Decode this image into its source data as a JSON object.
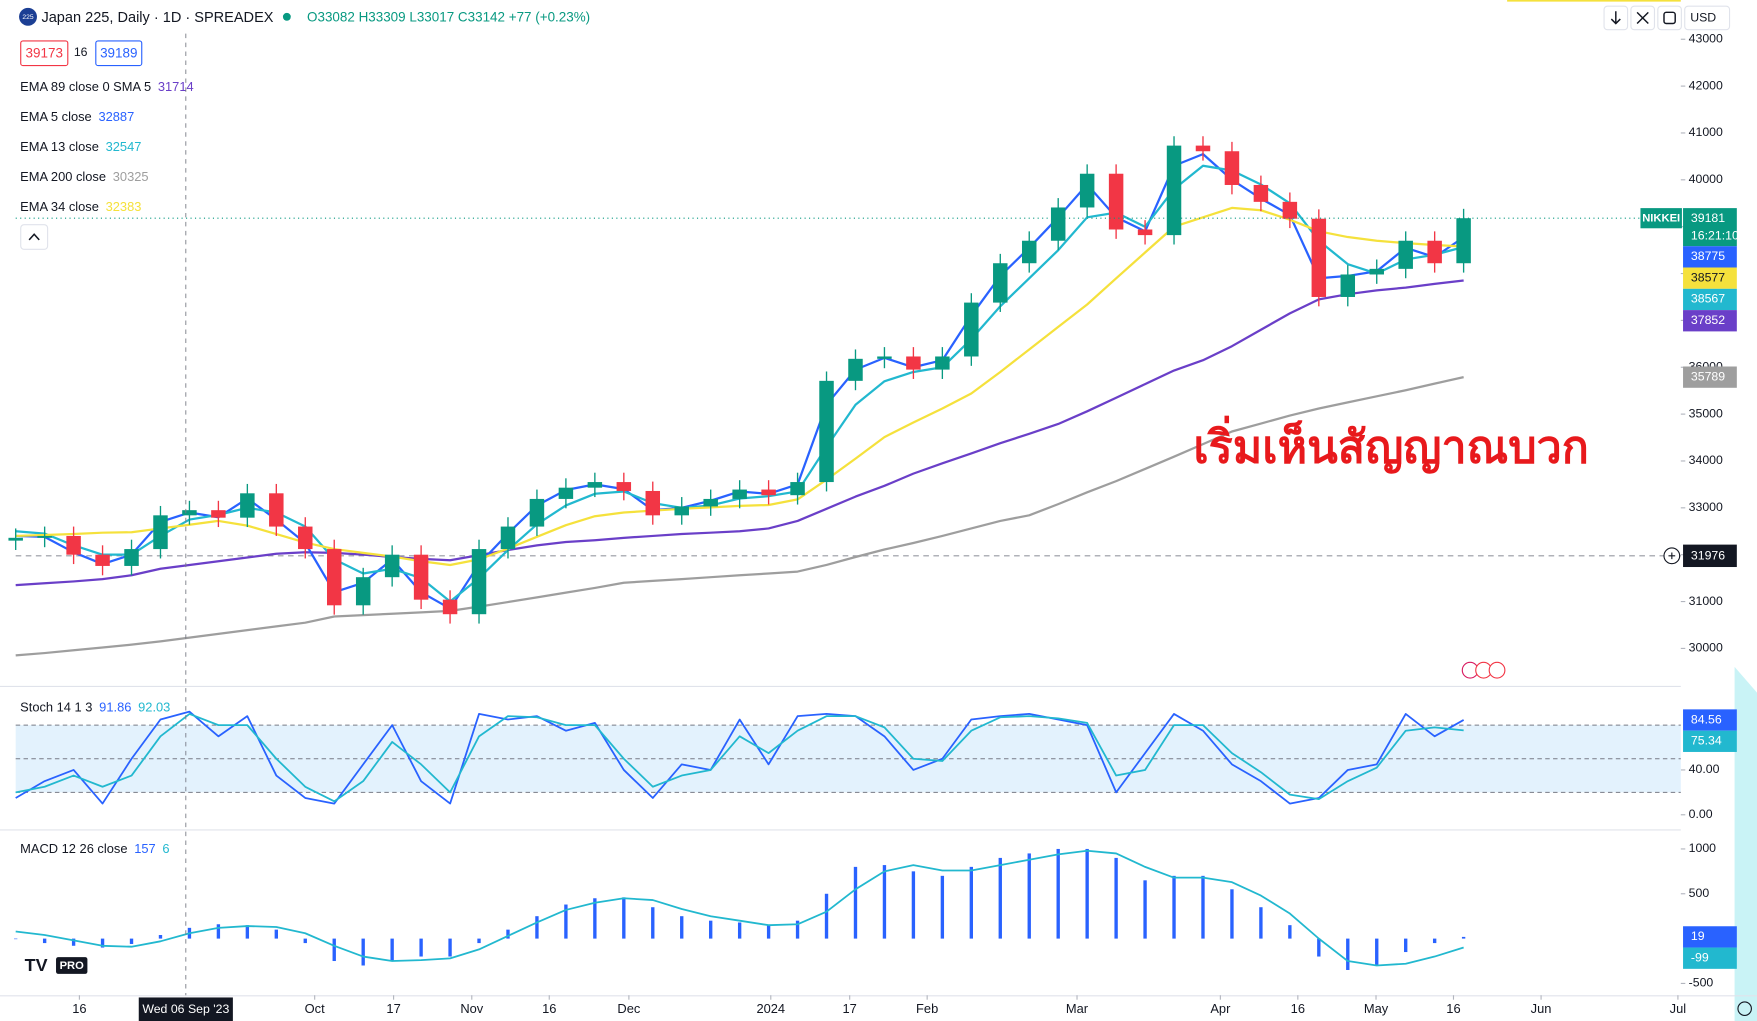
{
  "header": {
    "logo": "225",
    "title": "Japan 225, Daily · 1D · SPREADEX",
    "ohlc": "O33082 H33309 L33017 C33142 +77 (+0.23%)",
    "bid": "39173",
    "spread": "16",
    "ask": "39189",
    "currency": "USD",
    "tv_logo": "PRO"
  },
  "chart_data": [
    {
      "type": "candlestick",
      "x": [
        0,
        4,
        8,
        12,
        16,
        20,
        24,
        28,
        32,
        36,
        40,
        44,
        48,
        52,
        56,
        60,
        64,
        68,
        72,
        76,
        80,
        84,
        88,
        92,
        96,
        100,
        104,
        108,
        112,
        116,
        120,
        124,
        128,
        132,
        136,
        140,
        144,
        148,
        152,
        156,
        160,
        164,
        168,
        172,
        176,
        180,
        184,
        188,
        192,
        196,
        200
      ],
      "open": [
        32300,
        32360,
        32400,
        32000,
        31760,
        32120,
        32840,
        32950,
        32790,
        33310,
        32600,
        32120,
        30920,
        31520,
        32000,
        31040,
        30730,
        32120,
        32600,
        33190,
        33430,
        33550,
        33360,
        32840,
        33030,
        33190,
        33390,
        33270,
        33550,
        35710,
        36180,
        36230,
        35950,
        36230,
        37380,
        38220,
        38700,
        39410,
        40130,
        38940,
        38820,
        40730,
        40610,
        39890,
        39530,
        39170,
        37500,
        37980,
        38100,
        38700,
        38220
      ],
      "high": [
        32560,
        32600,
        32600,
        32200,
        32320,
        33040,
        33150,
        33150,
        33510,
        33510,
        32800,
        32320,
        31720,
        32200,
        32200,
        31240,
        32320,
        32800,
        33390,
        33630,
        33750,
        33750,
        33560,
        33230,
        33390,
        33590,
        33590,
        33750,
        35910,
        36380,
        36430,
        36430,
        36430,
        37580,
        38420,
        38900,
        39610,
        40330,
        40330,
        39140,
        40930,
        40930,
        40810,
        40090,
        39730,
        39370,
        38180,
        38300,
        38900,
        38900,
        39381
      ],
      "low": [
        32100,
        32160,
        31800,
        31560,
        31560,
        31920,
        32640,
        32590,
        32590,
        32400,
        31920,
        30720,
        30720,
        31320,
        30840,
        30530,
        30530,
        31920,
        32400,
        32990,
        33230,
        33160,
        32640,
        32640,
        32830,
        32990,
        33070,
        33070,
        33350,
        35510,
        35980,
        35750,
        35750,
        36030,
        37180,
        38020,
        38500,
        39210,
        38740,
        38620,
        38620,
        40410,
        39690,
        39330,
        38970,
        37300,
        37300,
        37780,
        37900,
        38020,
        38020
      ],
      "close": [
        32360,
        32400,
        32000,
        31760,
        32120,
        32840,
        32950,
        32790,
        33310,
        32600,
        32120,
        30920,
        31520,
        32000,
        31040,
        30730,
        32120,
        32600,
        33190,
        33430,
        33550,
        33360,
        32840,
        33030,
        33190,
        33390,
        33270,
        33550,
        35710,
        36180,
        36230,
        35950,
        36230,
        37380,
        38220,
        38700,
        39410,
        40130,
        38940,
        38820,
        40730,
        40610,
        39890,
        39530,
        39170,
        37500,
        37980,
        38100,
        38700,
        38220,
        39181
      ],
      "up_color": "#089981",
      "down_color": "#f23645",
      "series": [
        {
          "name": "EMA 89 close 0 SMA 5",
          "color": "#6a3fc8",
          "legend_value": 31714,
          "values": [
            31350,
            31390,
            31430,
            31480,
            31560,
            31700,
            31780,
            31860,
            31940,
            32020,
            32050,
            32040,
            32000,
            31950,
            31910,
            31880,
            31990,
            32100,
            32200,
            32270,
            32310,
            32360,
            32400,
            32440,
            32470,
            32500,
            32560,
            32720,
            32980,
            33240,
            33470,
            33730,
            33950,
            34160,
            34380,
            34580,
            34790,
            35060,
            35350,
            35640,
            35930,
            36150,
            36450,
            36800,
            37150,
            37450,
            37560,
            37640,
            37700,
            37780,
            37852
          ]
        },
        {
          "name": "EMA 5 close",
          "color": "#2962ff",
          "legend_value": 32887,
          "values": [
            32400,
            32380,
            32050,
            31800,
            32000,
            32700,
            32900,
            32800,
            33200,
            32750,
            32250,
            31200,
            31400,
            31900,
            31200,
            30850,
            31800,
            32450,
            33050,
            33380,
            33500,
            33400,
            32950,
            33000,
            33150,
            33350,
            33300,
            33500,
            35200,
            35950,
            36200,
            36000,
            36150,
            37100,
            37950,
            38550,
            39200,
            39900,
            39200,
            38900,
            40300,
            40550,
            40000,
            39600,
            39250,
            37900,
            37950,
            38050,
            38550,
            38350,
            38775
          ]
        },
        {
          "name": "EMA 13 close",
          "color": "#22b8cf",
          "legend_value": 32547,
          "values": [
            32500,
            32450,
            32200,
            32000,
            32000,
            32400,
            32750,
            32850,
            33000,
            32900,
            32600,
            31900,
            31600,
            31700,
            31500,
            31000,
            31500,
            32100,
            32650,
            33050,
            33300,
            33350,
            33100,
            33000,
            33050,
            33200,
            33250,
            33350,
            34300,
            35200,
            35700,
            35900,
            36000,
            36600,
            37300,
            37900,
            38500,
            39200,
            39300,
            39000,
            39800,
            40300,
            40200,
            39900,
            39500,
            38700,
            38200,
            38000,
            38300,
            38400,
            38567
          ]
        },
        {
          "name": "EMA 200 close",
          "color": "#9e9e9e",
          "legend_value": 30325,
          "values": [
            29850,
            29900,
            29960,
            30020,
            30080,
            30150,
            30230,
            30310,
            30390,
            30470,
            30550,
            30680,
            30710,
            30740,
            30770,
            30800,
            30890,
            30990,
            31090,
            31190,
            31290,
            31400,
            31440,
            31480,
            31520,
            31560,
            31600,
            31640,
            31780,
            31950,
            32110,
            32250,
            32400,
            32560,
            32720,
            32840,
            33080,
            33330,
            33570,
            33830,
            34090,
            34360,
            34630,
            34800,
            34970,
            35120,
            35250,
            35380,
            35510,
            35650,
            35789
          ]
        },
        {
          "name": "EMA 34 close",
          "color": "#f5e13c",
          "legend_value": 32383,
          "values": [
            32400,
            32420,
            32440,
            32470,
            32480,
            32560,
            32640,
            32720,
            32620,
            32440,
            32260,
            32120,
            32040,
            31960,
            31860,
            31780,
            31900,
            32130,
            32380,
            32630,
            32820,
            32900,
            32940,
            32980,
            33010,
            33040,
            33060,
            33180,
            33600,
            34050,
            34510,
            34820,
            35120,
            35440,
            35900,
            36380,
            36860,
            37340,
            37900,
            38450,
            39000,
            39200,
            39400,
            39350,
            39150,
            38900,
            38780,
            38700,
            38650,
            38610,
            38577
          ]
        }
      ],
      "xlim": [
        0,
        230
      ],
      "xticks": [
        {
          "value": 8.8,
          "label": "16"
        },
        {
          "value": 41.3,
          "label": "Oct"
        },
        {
          "value": 52.2,
          "label": "17"
        },
        {
          "value": 63,
          "label": "Nov"
        },
        {
          "value": 73.7,
          "label": "16"
        },
        {
          "value": 84.7,
          "label": "Dec"
        },
        {
          "value": 104.3,
          "label": "2024"
        },
        {
          "value": 115.2,
          "label": "17"
        },
        {
          "value": 125.9,
          "label": "Feb"
        },
        {
          "value": 146.6,
          "label": "Mar"
        },
        {
          "value": 166.4,
          "label": "Apr"
        },
        {
          "value": 177.1,
          "label": "16"
        },
        {
          "value": 187.9,
          "label": "May"
        },
        {
          "value": 198.6,
          "label": "16"
        },
        {
          "value": 210.7,
          "label": "Jun"
        },
        {
          "value": 229.6,
          "label": "Jul"
        }
      ],
      "ylim": [
        29200,
        43120
      ],
      "yticks": [
        30000,
        31000,
        32000,
        33000,
        34000,
        35000,
        36000,
        37000,
        38000,
        39000,
        40000,
        41000,
        42000,
        43000
      ],
      "hline": 31976,
      "symbol_label": "NIKKEI",
      "countdown": "16:21:10",
      "crosshair": {
        "value": 23.5,
        "label": "Wed 06 Sep '23"
      },
      "annotation": "เริ่มเห็นสัญญาณบวก"
    },
    {
      "type": "line",
      "title": "Stoch 14 1 3",
      "x": [
        0,
        4,
        8,
        12,
        16,
        20,
        24,
        28,
        32,
        36,
        40,
        44,
        48,
        52,
        56,
        60,
        64,
        68,
        72,
        76,
        80,
        84,
        88,
        92,
        96,
        100,
        104,
        108,
        112,
        116,
        120,
        124,
        128,
        132,
        136,
        140,
        144,
        148,
        152,
        156,
        160,
        164,
        168,
        172,
        176,
        180,
        184,
        188,
        192,
        196,
        200
      ],
      "series": [
        {
          "color": "#2962ff",
          "style": "line",
          "legend_value": 91.86,
          "values": [
            15,
            30,
            40,
            10,
            50,
            85,
            92,
            70,
            88,
            35,
            15,
            10,
            45,
            80,
            30,
            10,
            90,
            85,
            88,
            75,
            82,
            40,
            15,
            45,
            40,
            85,
            45,
            88,
            90,
            88,
            70,
            40,
            50,
            85,
            88,
            90,
            85,
            80,
            20,
            55,
            90,
            75,
            45,
            30,
            10,
            15,
            40,
            45,
            90,
            70,
            84.56
          ]
        },
        {
          "color": "#22b8cf",
          "style": "line",
          "legend_value": 92.03,
          "values": [
            20,
            25,
            35,
            25,
            35,
            70,
            90,
            80,
            80,
            50,
            25,
            12,
            30,
            65,
            45,
            20,
            70,
            88,
            87,
            80,
            80,
            50,
            25,
            35,
            40,
            70,
            55,
            75,
            88,
            88,
            78,
            50,
            48,
            75,
            87,
            88,
            86,
            82,
            35,
            40,
            80,
            80,
            55,
            38,
            18,
            14,
            30,
            42,
            75,
            78,
            75.34
          ]
        }
      ],
      "ylim": [
        -13,
        112
      ],
      "yticks": [
        {
          "value": 0,
          "label": "0.00"
        },
        {
          "value": 40,
          "label": "40.00"
        }
      ],
      "bands": [
        20,
        50,
        80
      ],
      "band_color": "#e3f2fd"
    },
    {
      "type": "bar",
      "title": "MACD 12 26 close",
      "x": [
        0,
        4,
        8,
        12,
        16,
        20,
        24,
        28,
        32,
        36,
        40,
        44,
        48,
        52,
        56,
        60,
        64,
        68,
        72,
        76,
        80,
        84,
        88,
        92,
        96,
        100,
        104,
        108,
        112,
        116,
        120,
        124,
        128,
        132,
        136,
        140,
        144,
        148,
        152,
        156,
        160,
        164,
        168,
        172,
        176,
        180,
        184,
        188,
        192,
        196,
        200
      ],
      "series": [
        {
          "color": "#2962ff",
          "style": "columns",
          "legend_value": 157,
          "values": [
            0,
            -50,
            -80,
            -100,
            -60,
            40,
            120,
            160,
            150,
            100,
            -50,
            -250,
            -300,
            -250,
            -200,
            -200,
            -50,
            100,
            250,
            380,
            450,
            460,
            350,
            250,
            200,
            180,
            150,
            200,
            500,
            800,
            820,
            750,
            700,
            800,
            900,
            950,
            1000,
            1000,
            900,
            650,
            700,
            700,
            550,
            350,
            150,
            -200,
            -350,
            -300,
            -150,
            -50,
            19
          ]
        },
        {
          "color": "#22b8cf",
          "style": "line",
          "legend_value": 6,
          "values": [
            80,
            40,
            -20,
            -80,
            -90,
            -30,
            60,
            120,
            140,
            130,
            60,
            -80,
            -200,
            -250,
            -240,
            -220,
            -120,
            30,
            180,
            320,
            400,
            450,
            430,
            330,
            250,
            200,
            150,
            160,
            300,
            550,
            750,
            820,
            760,
            760,
            820,
            880,
            940,
            980,
            950,
            800,
            680,
            680,
            630,
            480,
            280,
            0,
            -250,
            -300,
            -280,
            -200,
            -99
          ]
        }
      ],
      "ylim": [
        -594,
        1156
      ],
      "yticks": [
        -500,
        500,
        1000
      ]
    }
  ]
}
